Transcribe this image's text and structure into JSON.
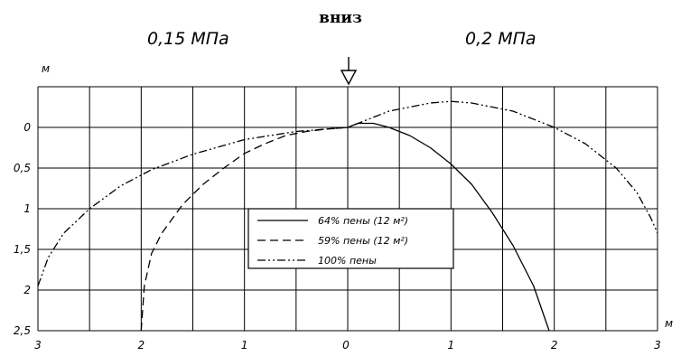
{
  "chart_data": {
    "type": "line",
    "title": "вниз",
    "left_label": "0,15 МПа",
    "right_label": "0,2 МПа",
    "xlabel": "м",
    "ylabel": "м",
    "x_ticks": [
      "3",
      "2",
      "1",
      "0",
      "0",
      "1",
      "2",
      "3"
    ],
    "y_ticks": [
      "0",
      "0,5",
      "1",
      "1,5",
      "2",
      "2,5"
    ],
    "xlim": [
      -3,
      3
    ],
    "ylim": [
      -0.5,
      2.5
    ],
    "y_inverted": true,
    "grid": true,
    "legend_position": "center-right",
    "series": [
      {
        "name": "64% пены (12 м²)",
        "style": "solid",
        "x": [
          0,
          0.1,
          0.25,
          0.4,
          0.6,
          0.8,
          1.0,
          1.2,
          1.4,
          1.6,
          1.8,
          1.95
        ],
        "y": [
          0.0,
          -0.05,
          -0.05,
          0.0,
          0.1,
          0.25,
          0.45,
          0.7,
          1.05,
          1.45,
          1.95,
          2.5
        ]
      },
      {
        "name": "59% пены (12 м²)",
        "style": "dashed",
        "x": [
          -2.0,
          -1.97,
          -1.9,
          -1.8,
          -1.6,
          -1.4,
          -1.2,
          -1.0,
          -0.8,
          -0.6,
          -0.4,
          -0.2,
          0
        ],
        "y": [
          2.5,
          1.95,
          1.55,
          1.3,
          0.95,
          0.7,
          0.5,
          0.32,
          0.2,
          0.1,
          0.05,
          0.02,
          0.0
        ]
      },
      {
        "name": "100% пены",
        "style": "dash-dot",
        "x": [
          -3.0,
          -2.9,
          -2.75,
          -2.5,
          -2.2,
          -1.9,
          -1.5,
          -1.0,
          -0.5,
          0,
          0.4,
          0.8,
          1.0,
          1.2,
          1.6,
          2.0,
          2.3,
          2.6,
          2.8,
          2.93,
          3.0
        ],
        "y": [
          1.95,
          1.6,
          1.3,
          1.0,
          0.72,
          0.52,
          0.33,
          0.15,
          0.05,
          0.0,
          -0.2,
          -0.3,
          -0.32,
          -0.3,
          -0.2,
          0.0,
          0.2,
          0.5,
          0.8,
          1.1,
          1.3
        ]
      }
    ]
  }
}
